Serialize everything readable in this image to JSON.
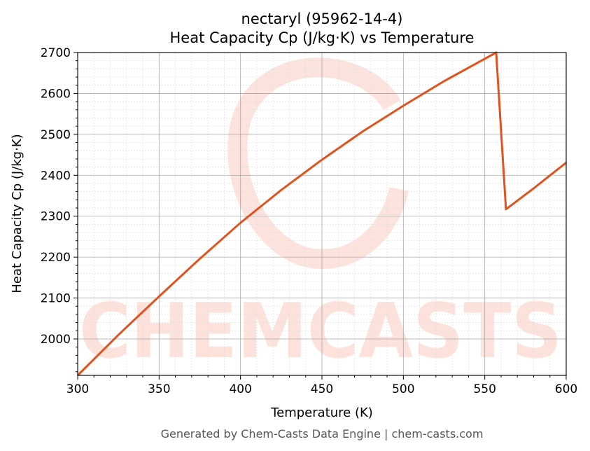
{
  "chart_data": {
    "type": "line",
    "title": "nectaryl (95962-14-4)",
    "subtitle": "Heat Capacity Cp (J/kg·K) vs Temperature",
    "xlabel": "Temperature (K)",
    "ylabel": "Heat Capacity Cp (J/kg·K)",
    "xlim": [
      300,
      600
    ],
    "ylim": [
      1911,
      2700
    ],
    "xticks": [
      300,
      350,
      400,
      450,
      500,
      550,
      600
    ],
    "yticks": [
      2000,
      2100,
      2200,
      2300,
      2400,
      2500,
      2600,
      2700
    ],
    "grid": true,
    "x": [
      300,
      325,
      350,
      375,
      400,
      425,
      450,
      475,
      500,
      525,
      557,
      563,
      580,
      600
    ],
    "y": [
      1911,
      2010,
      2104,
      2196,
      2284,
      2364,
      2438,
      2507,
      2570,
      2630,
      2700,
      2317,
      2368,
      2431
    ],
    "line_color": "#e0531f",
    "watermark": "CHEMCASTS",
    "footer": "Generated by Chem-Casts Data Engine | chem-casts.com"
  }
}
